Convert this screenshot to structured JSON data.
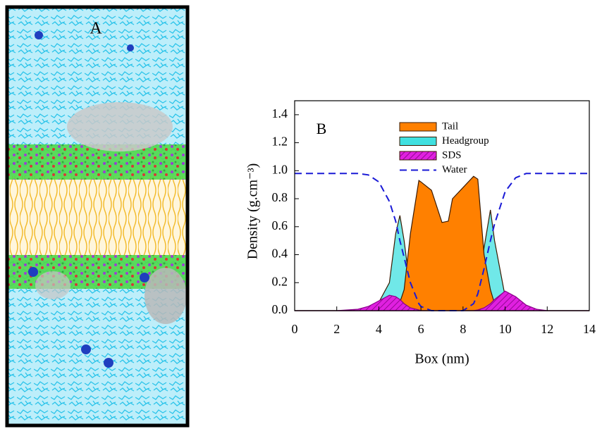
{
  "image_panel": {
    "label": "A"
  },
  "chart_data": {
    "type": "area",
    "annotation": "B",
    "xlabel": "Box (nm)",
    "ylabel": "Density (g.cm⁻³)",
    "x": [
      0,
      2,
      2.5,
      3,
      3.5,
      4,
      4.5,
      4.8,
      5,
      5.2,
      5.5,
      5.9,
      6,
      6.5,
      7,
      7.3,
      7.5,
      8,
      8.5,
      8.7,
      9,
      9.3,
      9.5,
      10,
      10.5,
      11,
      11.5,
      12,
      14
    ],
    "series": [
      {
        "name": "Headgroup",
        "kind": "area",
        "color": "#40e0e0",
        "values": [
          0,
          0,
          0,
          0.005,
          0.02,
          0.06,
          0.2,
          0.55,
          0.68,
          0.5,
          0.15,
          0.03,
          0.02,
          0,
          0,
          0,
          0,
          0.01,
          0.05,
          0.15,
          0.45,
          0.72,
          0.5,
          0.1,
          0.02,
          0,
          0,
          0,
          0
        ]
      },
      {
        "name": "Tail",
        "kind": "area",
        "color": "#ff8000",
        "values": [
          0,
          0,
          0,
          0,
          0,
          0,
          0.01,
          0.03,
          0.06,
          0.15,
          0.55,
          0.93,
          0.92,
          0.86,
          0.63,
          0.64,
          0.8,
          0.88,
          0.96,
          0.94,
          0.4,
          0.15,
          0.05,
          0,
          0,
          0,
          0,
          0,
          0
        ]
      },
      {
        "name": "SDS",
        "kind": "hatched",
        "color": "#e020e0",
        "values": [
          0,
          0,
          0.005,
          0.01,
          0.03,
          0.07,
          0.11,
          0.1,
          0.08,
          0.05,
          0.02,
          0.005,
          0,
          0,
          0,
          0,
          0,
          0,
          0,
          0.005,
          0.02,
          0.05,
          0.08,
          0.14,
          0.1,
          0.04,
          0.01,
          0,
          0
        ]
      },
      {
        "name": "Water",
        "kind": "dashed",
        "color": "#1a1ad6",
        "values": [
          0.98,
          0.98,
          0.98,
          0.98,
          0.97,
          0.92,
          0.78,
          0.64,
          0.5,
          0.38,
          0.2,
          0.05,
          0.03,
          0,
          0,
          0,
          0,
          0,
          0.05,
          0.12,
          0.3,
          0.5,
          0.62,
          0.85,
          0.95,
          0.98,
          0.98,
          0.98,
          0.98
        ]
      }
    ],
    "legend_order": [
      1,
      0,
      2,
      3
    ],
    "xlim": [
      0,
      14
    ],
    "ylim": [
      0,
      1.5
    ],
    "xticks": [
      0,
      2,
      4,
      6,
      8,
      10,
      12,
      14
    ],
    "yticks": [
      {
        "value": 0,
        "label": "0.0"
      },
      0.2,
      0.4,
      0.6,
      0.8,
      {
        "value": 1,
        "label": "1.0"
      },
      1.2,
      1.4
    ]
  }
}
